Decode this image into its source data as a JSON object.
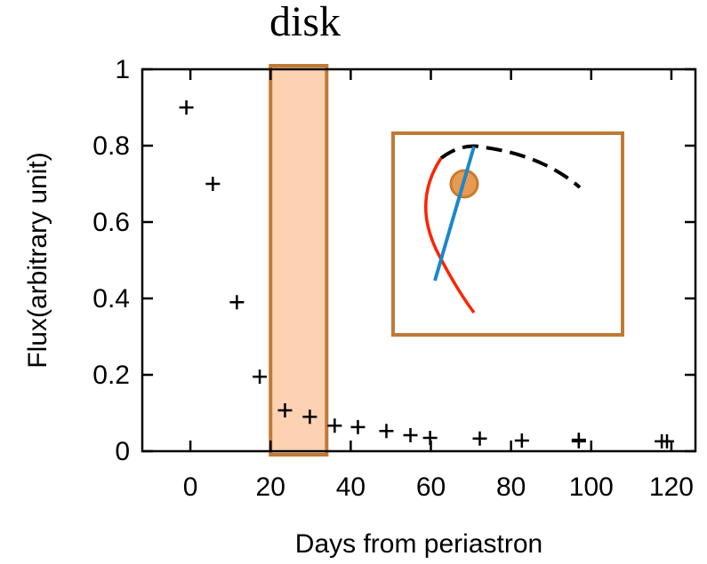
{
  "chart_data": {
    "type": "scatter",
    "title": "disk",
    "x_label": "Days from periastron",
    "y_label": "Flux(arbitrary unit)",
    "highlight_x": [
      20,
      34
    ],
    "color": "#000000",
    "x": [
      -1,
      5.6,
      11.6,
      17.3,
      23.6,
      29.8,
      36,
      41.8,
      48.9,
      54.9,
      59.8,
      72.2,
      82.7,
      96.9,
      96.9,
      117.6,
      118.9
    ],
    "values": [
      0.9,
      0.7,
      0.39,
      0.195,
      0.107,
      0.09,
      0.067,
      0.063,
      0.053,
      0.042,
      0.035,
      0.033,
      0.028,
      0.03,
      0.026,
      0.026,
      0.026
    ],
    "xlim": [
      -12,
      126
    ],
    "xticks": [
      0,
      20,
      40,
      60,
      80,
      100,
      120
    ],
    "ylim": [
      0,
      1
    ],
    "yticks": [
      0,
      0.2,
      0.4,
      0.6,
      0.8,
      1
    ]
  }
}
